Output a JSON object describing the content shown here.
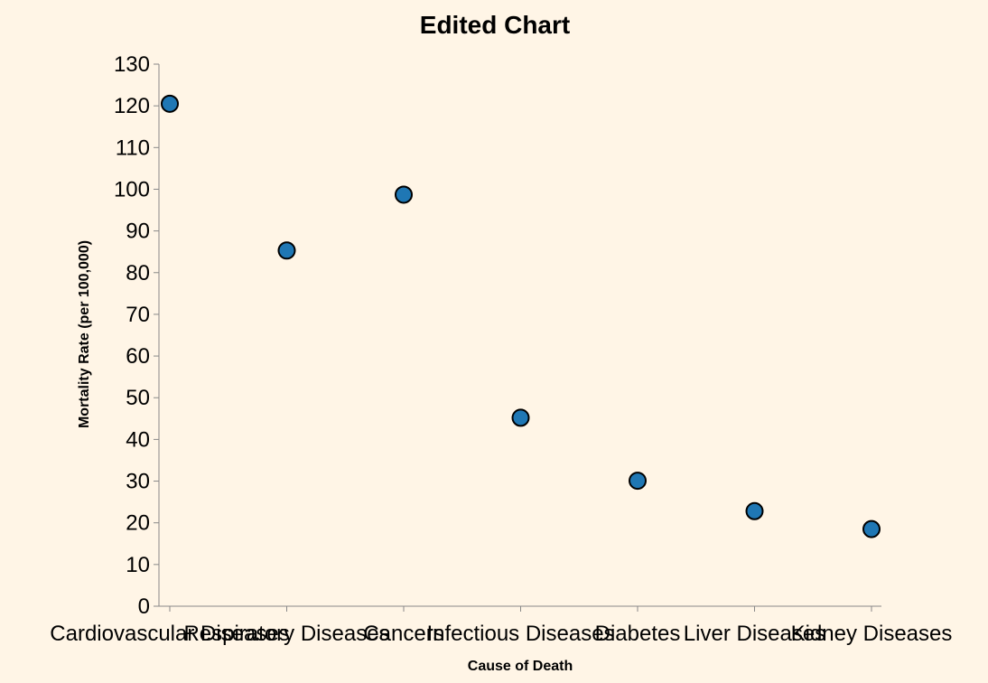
{
  "chart_data": {
    "type": "scatter",
    "title": "Edited Chart",
    "xlabel": "Cause of Death",
    "ylabel": "Mortality Rate (per 100,000)",
    "categories": [
      "Cardiovascular Diseases",
      "Respiratory Diseases",
      "Cancers",
      "Infectious Diseases",
      "Diabetes",
      "Liver Diseases",
      "Kidney Diseases"
    ],
    "values": [
      120.5,
      85.3,
      98.7,
      45.2,
      30.1,
      22.8,
      18.5
    ],
    "ylim": [
      0,
      130
    ],
    "yticks": [
      0,
      10,
      20,
      30,
      40,
      50,
      60,
      70,
      80,
      90,
      100,
      110,
      120,
      130
    ],
    "grid": false,
    "point_color": "#1f77b4",
    "background": "#fff5e6"
  }
}
